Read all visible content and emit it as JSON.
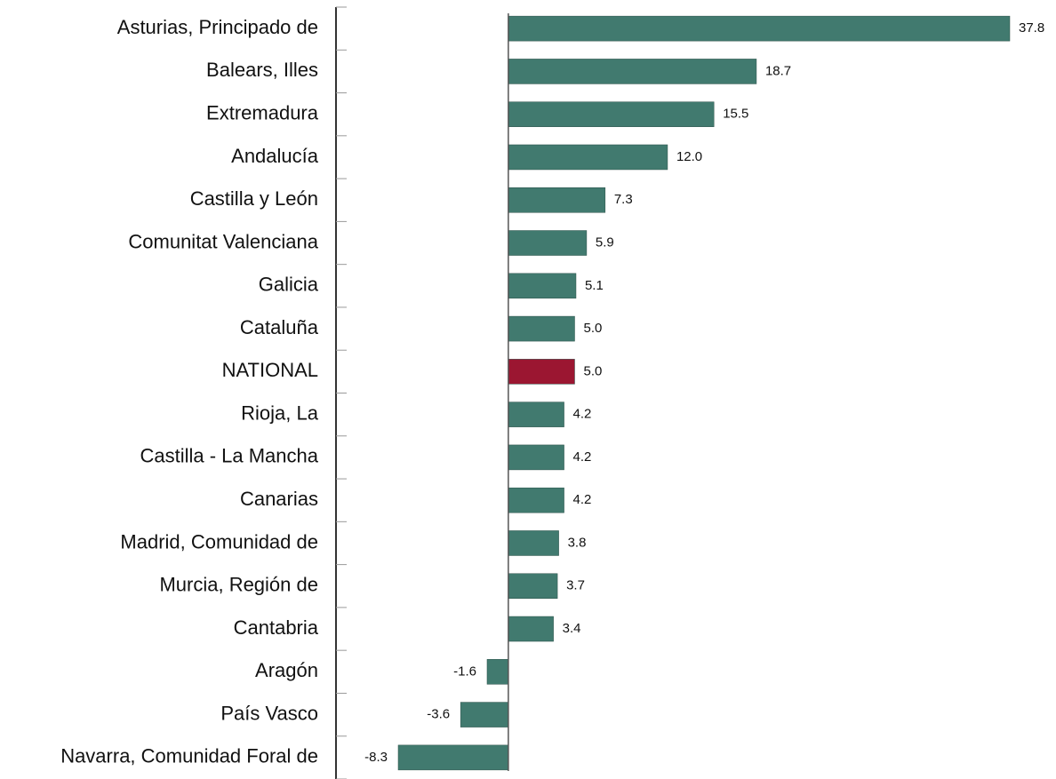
{
  "chart_data": {
    "type": "bar",
    "orientation": "horizontal",
    "categories": [
      "Asturias, Principado de",
      "Balears, Illes",
      "Extremadura",
      "Andalucía",
      "Castilla y León",
      "Comunitat Valenciana",
      "Galicia",
      "Cataluña",
      "NATIONAL",
      "Rioja, La",
      "Castilla - La Mancha",
      "Canarias",
      "Madrid, Comunidad de",
      "Murcia, Región de",
      "Cantabria",
      "Aragón",
      "País Vasco",
      "Navarra, Comunidad Foral de"
    ],
    "values": [
      37.8,
      18.7,
      15.5,
      12,
      7.3,
      5.9,
      5.1,
      5,
      5,
      4.2,
      4.2,
      4.2,
      3.8,
      3.7,
      3.4,
      -1.6,
      -3.6,
      -8.3
    ],
    "value_labels": [
      "37.8",
      "18.7",
      "15.5",
      "12.0",
      "7.3",
      "5.9",
      "5.1",
      "5.0",
      "5.0",
      "4.2",
      "4.2",
      "4.2",
      "3.8",
      "3.7",
      "3.4",
      "-1.6",
      "-3.6",
      "-8.3"
    ],
    "colors": [
      "#417a6f",
      "#417a6f",
      "#417a6f",
      "#417a6f",
      "#417a6f",
      "#417a6f",
      "#417a6f",
      "#417a6f",
      "#9b1631",
      "#417a6f",
      "#417a6f",
      "#417a6f",
      "#417a6f",
      "#417a6f",
      "#417a6f",
      "#417a6f",
      "#417a6f",
      "#417a6f"
    ]
  }
}
